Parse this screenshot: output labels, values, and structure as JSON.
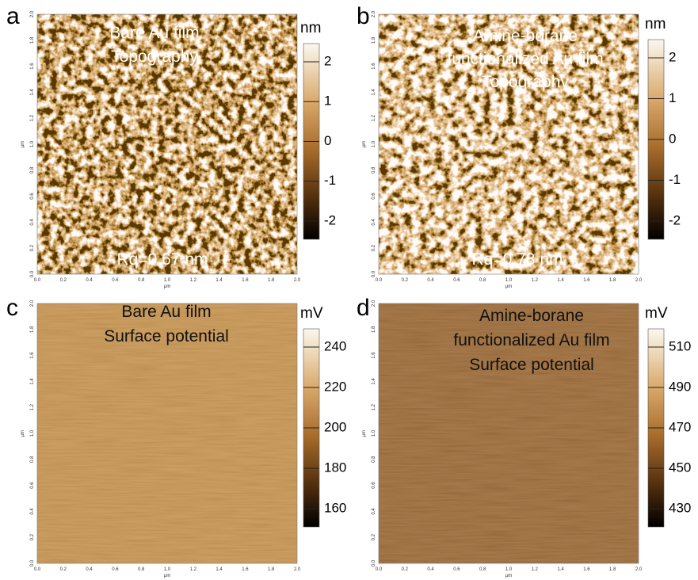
{
  "panels": [
    {
      "letter": "a",
      "title_lines": [
        "Bare Au film",
        "Topography"
      ],
      "roughness": "Rq=0.67 nm",
      "colorbar": {
        "unit": "nm",
        "ticks": [
          2,
          1,
          0,
          -1,
          -2
        ]
      }
    },
    {
      "letter": "b",
      "title_lines": [
        "Amine-borane",
        "functionalized Au film",
        "Topography"
      ],
      "roughness": "Rq=0.78 nm",
      "colorbar": {
        "unit": "nm",
        "ticks": [
          2,
          1,
          0,
          -1,
          -2
        ]
      }
    },
    {
      "letter": "c",
      "title_lines": [
        "Bare Au film",
        "Surface potential"
      ],
      "colorbar": {
        "unit": "mV",
        "ticks": [
          240,
          220,
          200,
          180,
          160
        ]
      }
    },
    {
      "letter": "d",
      "title_lines": [
        "Amine-borane",
        "functionalized Au film",
        "Surface potential"
      ],
      "colorbar": {
        "unit": "mV",
        "ticks": [
          510,
          490,
          470,
          450,
          430
        ]
      }
    }
  ],
  "axis": {
    "ticks": [
      "0.0",
      "0.2",
      "0.4",
      "0.6",
      "0.8",
      "1.0",
      "1.2",
      "1.4",
      "1.6",
      "1.8",
      "2.0"
    ],
    "unit": "µm"
  }
}
